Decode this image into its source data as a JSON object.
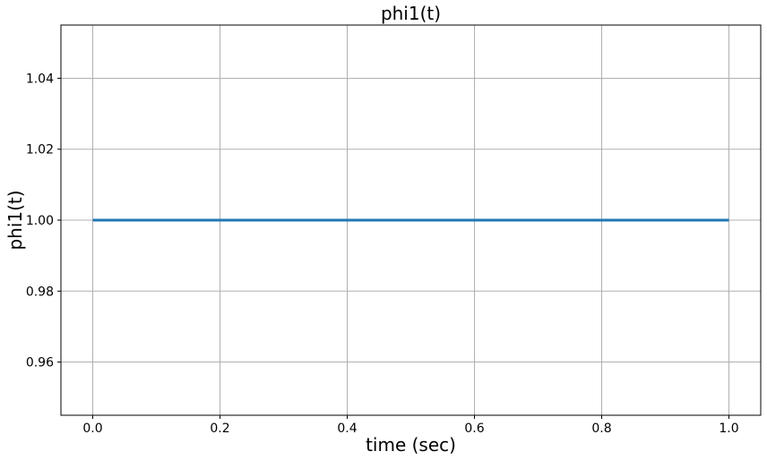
{
  "chart_data": {
    "type": "line",
    "title": "phi1(t)",
    "xlabel": "time (sec)",
    "ylabel": "phi1(t)",
    "xlim": [
      -0.05,
      1.05
    ],
    "ylim": [
      0.945,
      1.055
    ],
    "xticks": [
      0.0,
      0.2,
      0.4,
      0.6,
      0.8,
      1.0
    ],
    "xtick_labels": [
      "0.0",
      "0.2",
      "0.4",
      "0.6",
      "0.8",
      "1.0"
    ],
    "yticks": [
      0.96,
      0.98,
      1.0,
      1.02,
      1.04
    ],
    "ytick_labels": [
      "0.96",
      "0.98",
      "1.00",
      "1.02",
      "1.04"
    ],
    "grid": true,
    "series": [
      {
        "color": "#1f77b4",
        "x": [
          0.0,
          0.2,
          0.4,
          0.6,
          0.8,
          1.0
        ],
        "y": [
          1.0,
          1.0,
          1.0,
          1.0,
          1.0,
          1.0
        ]
      }
    ],
    "colors": {
      "grid": "#b0b0b0",
      "axes": "#000000"
    }
  }
}
